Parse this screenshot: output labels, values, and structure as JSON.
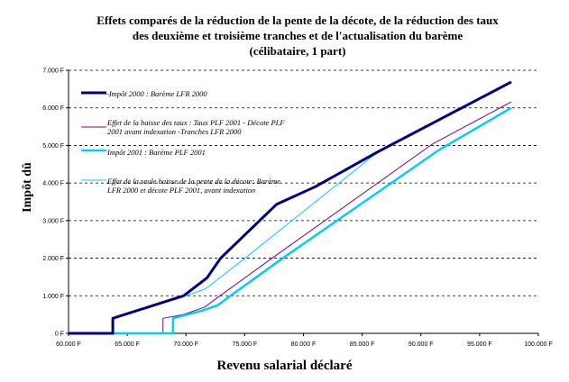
{
  "chart_data": {
    "type": "line",
    "title": [
      "Effets comparés de la réduction de la pente de la décote, de la réduction des taux",
      "des deuxième et troisième tranches et de l'actualisation du barème",
      "(célibataire, 1 part)"
    ],
    "xlabel": "Revenu salarial déclaré",
    "ylabel": "Impôt dû",
    "xlim": [
      60000,
      100000
    ],
    "ylim": [
      0,
      7000
    ],
    "x_ticks": [
      "60.000 F",
      "65.000 F",
      "70.000 F",
      "75.000 F",
      "80.000 F",
      "85.000 F",
      "90.000 F",
      "95.000 F",
      "100.000 F"
    ],
    "y_ticks": [
      "0 F",
      "1.000 F",
      "2.000 F",
      "3.000 F",
      "4.000 F",
      "5.000 F",
      "6.000 F",
      "7.000 F"
    ],
    "grid": "horizontal dashed",
    "legend_placement": "top-left inside",
    "series": [
      {
        "name": "-Impôt 2000 : Barème LFR 2000",
        "color": "#000080",
        "width": 3,
        "points": [
          [
            60000,
            0
          ],
          [
            63770,
            0
          ],
          [
            63770,
            400
          ],
          [
            69800,
            1000
          ],
          [
            71800,
            1480
          ],
          [
            72950,
            2000
          ],
          [
            77700,
            3430
          ],
          [
            81000,
            3900
          ],
          [
            86400,
            4840
          ],
          [
            97700,
            6690
          ]
        ]
      },
      {
        "name": "Effet de la baisse des taux : Taux PLF 2001 - Décote PLF 2001 avant indexation -Tranches LFR 2000",
        "color": "#800080",
        "width": 1,
        "points": [
          [
            68040,
            0
          ],
          [
            68040,
            400
          ],
          [
            69800,
            500
          ],
          [
            71600,
            700
          ],
          [
            72900,
            1000
          ],
          [
            77330,
            2000
          ],
          [
            91000,
            5040
          ],
          [
            97700,
            6160
          ]
        ]
      },
      {
        "name": "Impôt 2001 : Barème PLF 2001",
        "color": "#00CCFF",
        "width": 2.5,
        "points": [
          [
            60000,
            0
          ],
          [
            68900,
            0
          ],
          [
            68900,
            400
          ],
          [
            71350,
            600
          ],
          [
            72730,
            750
          ],
          [
            73800,
            1000
          ],
          [
            78250,
            2000
          ],
          [
            91500,
            4870
          ],
          [
            97700,
            6000
          ]
        ]
      },
      {
        "name": "Effet de la seule baisse de la pente de la décote: Barème LFR 2000 et décote PLF 2001, avant indexation",
        "color": "#00CCFF",
        "width": 1,
        "points": [
          [
            63770,
            400
          ],
          [
            69970,
            1000
          ],
          [
            71650,
            1180
          ],
          [
            75030,
            2000
          ],
          [
            86400,
            4840
          ],
          [
            97700,
            6690
          ]
        ]
      }
    ]
  }
}
